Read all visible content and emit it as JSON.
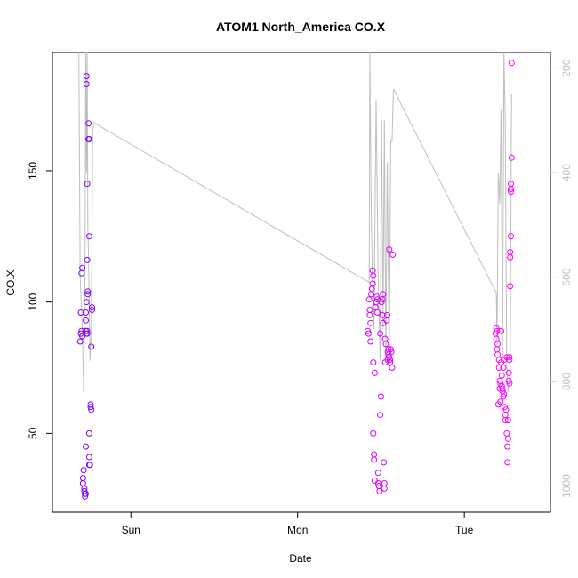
{
  "chart_data": {
    "type": "scatter",
    "title": "ATOM1 North_America CO.X",
    "xlabel": "Date",
    "ylabel": "CO.X",
    "x_ticks": [
      "Sun",
      "Mon",
      "Tue"
    ],
    "y_ticks": [
      "50",
      "100",
      "150"
    ],
    "y2_ticks": [
      "200",
      "400",
      "600",
      "800",
      "1000"
    ],
    "xlim_hours": [
      -11.3,
      60.4
    ],
    "ylim": [
      20,
      195
    ],
    "y2lim": [
      1050,
      170
    ],
    "y2_scale": "reversed",
    "grid": false,
    "legend": "none",
    "colors": {
      "start": "#7f00ff",
      "end": "#ff00ff",
      "line": "#bebebe"
    },
    "points": [
      {
        "x": -7.3,
        "y": 85
      },
      {
        "x": -7.2,
        "y": 88
      },
      {
        "x": -7.1,
        "y": 89
      },
      {
        "x": -7.0,
        "y": 87
      },
      {
        "x": -7.2,
        "y": 96
      },
      {
        "x": -7.1,
        "y": 111
      },
      {
        "x": -7.0,
        "y": 113
      },
      {
        "x": -6.8,
        "y": 36
      },
      {
        "x": -6.9,
        "y": 33
      },
      {
        "x": -6.9,
        "y": 31
      },
      {
        "x": -6.7,
        "y": 29
      },
      {
        "x": -6.7,
        "y": 28
      },
      {
        "x": -6.6,
        "y": 27
      },
      {
        "x": -6.6,
        "y": 26
      },
      {
        "x": -6.5,
        "y": 27
      },
      {
        "x": -6.5,
        "y": 45
      },
      {
        "x": -6.5,
        "y": 89
      },
      {
        "x": -6.5,
        "y": 96
      },
      {
        "x": -6.4,
        "y": 100
      },
      {
        "x": -6.5,
        "y": 93
      },
      {
        "x": -6.4,
        "y": 88
      },
      {
        "x": -6.3,
        "y": 88
      },
      {
        "x": -6.3,
        "y": 89
      },
      {
        "x": -6.4,
        "y": 186
      },
      {
        "x": -6.4,
        "y": 183
      },
      {
        "x": -6.3,
        "y": 145
      },
      {
        "x": -6.3,
        "y": 116
      },
      {
        "x": -6.2,
        "y": 103
      },
      {
        "x": -6.2,
        "y": 104
      },
      {
        "x": -6.1,
        "y": 162
      },
      {
        "x": -6.1,
        "y": 168
      },
      {
        "x": -6.0,
        "y": 162
      },
      {
        "x": -6.0,
        "y": 125
      },
      {
        "x": -6.0,
        "y": 50
      },
      {
        "x": -6.0,
        "y": 41
      },
      {
        "x": -5.9,
        "y": 38
      },
      {
        "x": -6.0,
        "y": 38
      },
      {
        "x": -5.8,
        "y": 61
      },
      {
        "x": -5.8,
        "y": 60
      },
      {
        "x": -5.7,
        "y": 59
      },
      {
        "x": -5.7,
        "y": 83
      },
      {
        "x": -5.6,
        "y": 97
      },
      {
        "x": -5.6,
        "y": 98
      },
      {
        "x": 34.1,
        "y": 89
      },
      {
        "x": 34.2,
        "y": 88
      },
      {
        "x": 34.3,
        "y": 101
      },
      {
        "x": 34.4,
        "y": 97
      },
      {
        "x": 34.4,
        "y": 95
      },
      {
        "x": 34.5,
        "y": 92
      },
      {
        "x": 34.5,
        "y": 85
      },
      {
        "x": 34.6,
        "y": 103
      },
      {
        "x": 34.7,
        "y": 105
      },
      {
        "x": 34.8,
        "y": 107
      },
      {
        "x": 34.8,
        "y": 112
      },
      {
        "x": 34.9,
        "y": 110
      },
      {
        "x": 34.9,
        "y": 77
      },
      {
        "x": 34.9,
        "y": 50
      },
      {
        "x": 35.0,
        "y": 42
      },
      {
        "x": 35.0,
        "y": 40
      },
      {
        "x": 35.1,
        "y": 32
      },
      {
        "x": 35.1,
        "y": 73
      },
      {
        "x": 35.2,
        "y": 98
      },
      {
        "x": 35.3,
        "y": 100
      },
      {
        "x": 35.4,
        "y": 102
      },
      {
        "x": 35.5,
        "y": 101
      },
      {
        "x": 35.5,
        "y": 96
      },
      {
        "x": 35.6,
        "y": 31
      },
      {
        "x": 35.6,
        "y": 35
      },
      {
        "x": 35.7,
        "y": 30
      },
      {
        "x": 35.8,
        "y": 28
      },
      {
        "x": 35.9,
        "y": 57
      },
      {
        "x": 35.9,
        "y": 88
      },
      {
        "x": 36.0,
        "y": 64
      },
      {
        "x": 36.1,
        "y": 100
      },
      {
        "x": 36.2,
        "y": 101
      },
      {
        "x": 36.2,
        "y": 95
      },
      {
        "x": 36.3,
        "y": 103
      },
      {
        "x": 36.3,
        "y": 92
      },
      {
        "x": 36.4,
        "y": 39
      },
      {
        "x": 36.5,
        "y": 29
      },
      {
        "x": 36.5,
        "y": 31
      },
      {
        "x": 36.6,
        "y": 86
      },
      {
        "x": 36.6,
        "y": 77
      },
      {
        "x": 36.7,
        "y": 84
      },
      {
        "x": 36.8,
        "y": 93
      },
      {
        "x": 36.9,
        "y": 95
      },
      {
        "x": 37.0,
        "y": 78
      },
      {
        "x": 37.0,
        "y": 81
      },
      {
        "x": 37.1,
        "y": 80
      },
      {
        "x": 37.1,
        "y": 82
      },
      {
        "x": 37.2,
        "y": 120
      },
      {
        "x": 37.2,
        "y": 79
      },
      {
        "x": 37.3,
        "y": 78
      },
      {
        "x": 37.3,
        "y": 77
      },
      {
        "x": 37.4,
        "y": 82
      },
      {
        "x": 37.5,
        "y": 81
      },
      {
        "x": 37.6,
        "y": 75
      },
      {
        "x": 37.7,
        "y": 118
      },
      {
        "x": 52.5,
        "y": 88
      },
      {
        "x": 52.6,
        "y": 90
      },
      {
        "x": 52.6,
        "y": 86
      },
      {
        "x": 52.7,
        "y": 89
      },
      {
        "x": 52.7,
        "y": 82
      },
      {
        "x": 52.8,
        "y": 84
      },
      {
        "x": 52.8,
        "y": 80
      },
      {
        "x": 52.9,
        "y": 61
      },
      {
        "x": 53.0,
        "y": 78
      },
      {
        "x": 53.0,
        "y": 75
      },
      {
        "x": 53.1,
        "y": 70
      },
      {
        "x": 53.1,
        "y": 67
      },
      {
        "x": 53.2,
        "y": 62
      },
      {
        "x": 53.2,
        "y": 69
      },
      {
        "x": 53.3,
        "y": 77
      },
      {
        "x": 53.3,
        "y": 89
      },
      {
        "x": 53.4,
        "y": 72
      },
      {
        "x": 53.4,
        "y": 68
      },
      {
        "x": 53.5,
        "y": 67
      },
      {
        "x": 53.5,
        "y": 66
      },
      {
        "x": 53.6,
        "y": 75
      },
      {
        "x": 53.6,
        "y": 64
      },
      {
        "x": 53.7,
        "y": 78
      },
      {
        "x": 53.7,
        "y": 65
      },
      {
        "x": 53.8,
        "y": 60
      },
      {
        "x": 53.9,
        "y": 57
      },
      {
        "x": 53.9,
        "y": 55
      },
      {
        "x": 54.0,
        "y": 59
      },
      {
        "x": 54.1,
        "y": 79
      },
      {
        "x": 54.1,
        "y": 50
      },
      {
        "x": 54.2,
        "y": 39
      },
      {
        "x": 54.2,
        "y": 45
      },
      {
        "x": 54.3,
        "y": 48
      },
      {
        "x": 54.3,
        "y": 55
      },
      {
        "x": 54.4,
        "y": 73
      },
      {
        "x": 54.4,
        "y": 70
      },
      {
        "x": 54.5,
        "y": 79
      },
      {
        "x": 54.5,
        "y": 78
      },
      {
        "x": 54.5,
        "y": 69
      },
      {
        "x": 54.6,
        "y": 106
      },
      {
        "x": 54.6,
        "y": 117
      },
      {
        "x": 54.6,
        "y": 119
      },
      {
        "x": 54.7,
        "y": 125
      },
      {
        "x": 54.7,
        "y": 142
      },
      {
        "x": 54.7,
        "y": 143
      },
      {
        "x": 54.7,
        "y": 145
      },
      {
        "x": 54.8,
        "y": 155
      },
      {
        "x": 54.8,
        "y": 191
      }
    ],
    "pressure_line": [
      [
        -7.5,
        160
      ],
      [
        -7.3,
        600
      ],
      [
        -7.0,
        700
      ],
      [
        -6.8,
        820
      ],
      [
        -6.6,
        560
      ],
      [
        -6.5,
        160
      ],
      [
        -6.4,
        400
      ],
      [
        -6.3,
        160
      ],
      [
        -6.2,
        500
      ],
      [
        -6.1,
        560
      ],
      [
        -5.9,
        760
      ],
      [
        -5.7,
        700
      ],
      [
        -5.5,
        320
      ],
      [
        -5.3,
        305
      ],
      [
        34.3,
        610
      ],
      [
        34.4,
        160
      ],
      [
        34.6,
        480
      ],
      [
        34.8,
        620
      ],
      [
        35.0,
        700
      ],
      [
        35.3,
        260
      ],
      [
        35.6,
        600
      ],
      [
        35.9,
        760
      ],
      [
        36.1,
        300
      ],
      [
        36.3,
        700
      ],
      [
        36.5,
        300
      ],
      [
        36.7,
        760
      ],
      [
        36.9,
        380
      ],
      [
        37.2,
        760
      ],
      [
        37.4,
        340
      ],
      [
        37.6,
        340
      ],
      [
        37.8,
        240
      ],
      [
        52.6,
        630
      ],
      [
        52.7,
        730
      ],
      [
        52.9,
        400
      ],
      [
        53.1,
        460
      ],
      [
        53.3,
        280
      ],
      [
        53.5,
        760
      ],
      [
        53.7,
        160
      ],
      [
        53.9,
        300
      ],
      [
        54.1,
        760
      ],
      [
        54.3,
        820
      ],
      [
        54.6,
        780
      ],
      [
        54.8,
        250
      ]
    ]
  }
}
